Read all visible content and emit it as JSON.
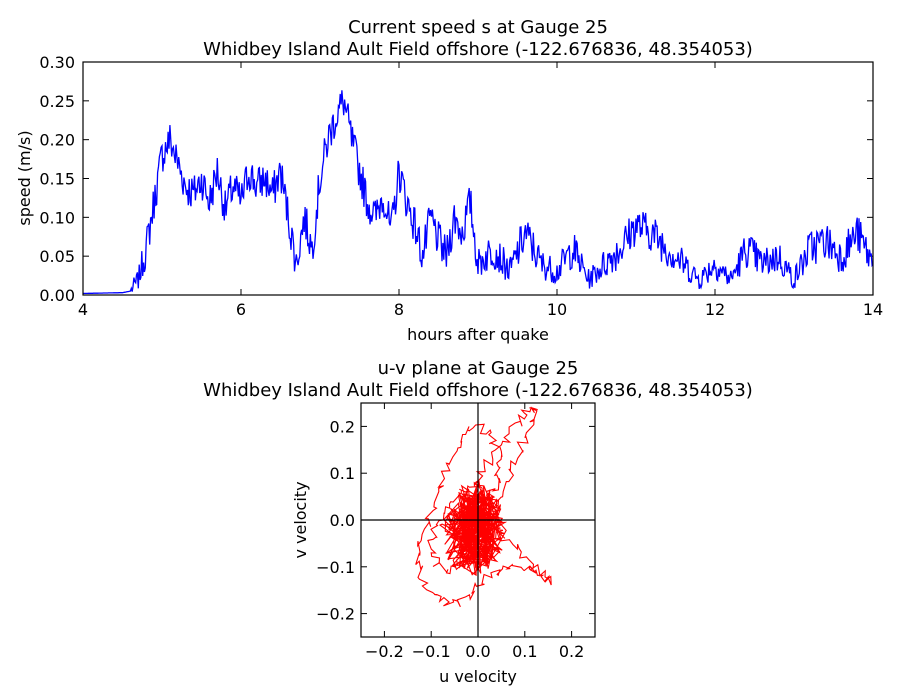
{
  "chart_data": [
    {
      "type": "line",
      "title": "Current speed s at Gauge 25",
      "subtitle": "Whidbey Island Ault Field offshore  (-122.676836, 48.354053)",
      "xlabel": "hours after quake",
      "ylabel": "speed (m/s)",
      "xlim": [
        4,
        14
      ],
      "ylim": [
        0,
        0.3
      ],
      "xticks": [
        "4",
        "6",
        "8",
        "10",
        "12",
        "14"
      ],
      "yticks": [
        "0.00",
        "0.05",
        "0.10",
        "0.15",
        "0.20",
        "0.25",
        "0.30"
      ],
      "grid": false,
      "series_color": "#0000ff",
      "x": [
        4.0,
        4.5,
        4.6,
        4.7,
        4.8,
        4.9,
        5.0,
        5.1,
        5.2,
        5.3,
        5.4,
        5.5,
        5.6,
        5.7,
        5.8,
        5.9,
        6.0,
        6.1,
        6.2,
        6.3,
        6.4,
        6.5,
        6.6,
        6.7,
        6.8,
        6.9,
        7.0,
        7.1,
        7.2,
        7.3,
        7.4,
        7.5,
        7.6,
        7.7,
        7.8,
        7.9,
        8.0,
        8.1,
        8.2,
        8.3,
        8.4,
        8.5,
        8.6,
        8.7,
        8.8,
        8.9,
        9.0,
        9.2,
        9.4,
        9.6,
        9.8,
        10.0,
        10.2,
        10.4,
        10.6,
        10.8,
        11.0,
        11.2,
        11.4,
        11.6,
        11.8,
        12.0,
        12.2,
        12.4,
        12.6,
        12.8,
        13.0,
        13.2,
        13.4,
        13.6,
        13.8,
        14.0
      ],
      "y": [
        0.002,
        0.003,
        0.005,
        0.02,
        0.06,
        0.12,
        0.18,
        0.2,
        0.17,
        0.14,
        0.13,
        0.15,
        0.12,
        0.16,
        0.11,
        0.14,
        0.12,
        0.16,
        0.14,
        0.15,
        0.13,
        0.16,
        0.1,
        0.04,
        0.1,
        0.06,
        0.15,
        0.2,
        0.23,
        0.25,
        0.2,
        0.16,
        0.12,
        0.1,
        0.13,
        0.08,
        0.16,
        0.12,
        0.09,
        0.05,
        0.1,
        0.07,
        0.05,
        0.1,
        0.08,
        0.12,
        0.04,
        0.06,
        0.03,
        0.08,
        0.04,
        0.03,
        0.06,
        0.02,
        0.04,
        0.06,
        0.09,
        0.08,
        0.06,
        0.04,
        0.02,
        0.04,
        0.02,
        0.06,
        0.04,
        0.05,
        0.02,
        0.06,
        0.07,
        0.05,
        0.08,
        0.04
      ]
    },
    {
      "type": "line",
      "title": "u-v plane at Gauge 25",
      "subtitle": "Whidbey Island Ault Field offshore  (-122.676836, 48.354053)",
      "xlabel": "u velocity",
      "ylabel": "v velocity",
      "xlim": [
        -0.25,
        0.25
      ],
      "ylim": [
        -0.25,
        0.25
      ],
      "xticks": [
        "−0.2",
        "−0.1",
        "0.0",
        "0.1",
        "0.2"
      ],
      "yticks": [
        "−0.2",
        "−0.1",
        "0.0",
        "0.1",
        "0.2"
      ],
      "grid": false,
      "series_color": "#ff0000",
      "u": [
        0.0,
        0.02,
        0.04,
        0.05,
        0.04,
        0.02,
        -0.01,
        -0.04,
        -0.06,
        -0.08,
        -0.1,
        -0.12,
        -0.13,
        -0.12,
        -0.1,
        -0.08,
        -0.05,
        -0.02,
        0.01,
        0.04,
        0.07,
        0.1,
        0.13,
        0.15,
        0.14,
        0.11,
        0.08,
        0.05,
        0.03,
        0.01,
        0.0,
        0.02,
        0.05,
        0.08,
        0.1,
        0.12,
        0.11,
        0.09,
        0.07,
        0.05,
        0.03,
        0.01,
        -0.01,
        -0.03,
        -0.05,
        -0.07,
        -0.09,
        -0.1,
        -0.09,
        -0.06,
        -0.03,
        0.0,
        0.02,
        0.04,
        0.05,
        0.04,
        0.02,
        0.0,
        -0.02,
        -0.04,
        -0.05,
        -0.04,
        -0.02,
        0.0
      ],
      "v": [
        0.0,
        0.04,
        0.08,
        0.12,
        0.16,
        0.19,
        0.2,
        0.17,
        0.12,
        0.07,
        0.02,
        -0.03,
        -0.08,
        -0.12,
        -0.15,
        -0.17,
        -0.18,
        -0.16,
        -0.13,
        -0.11,
        -0.1,
        -0.1,
        -0.11,
        -0.13,
        -0.12,
        -0.09,
        -0.06,
        -0.03,
        0.0,
        0.04,
        0.08,
        0.12,
        0.16,
        0.2,
        0.23,
        0.24,
        0.2,
        0.15,
        0.1,
        0.05,
        0.02,
        -0.02,
        -0.05,
        -0.08,
        -0.1,
        -0.11,
        -0.09,
        -0.05,
        -0.01,
        0.03,
        0.06,
        0.08,
        0.06,
        0.03,
        0.0,
        -0.04,
        -0.07,
        -0.09,
        -0.08,
        -0.05,
        -0.02,
        0.01,
        0.02,
        0.0
      ]
    }
  ]
}
